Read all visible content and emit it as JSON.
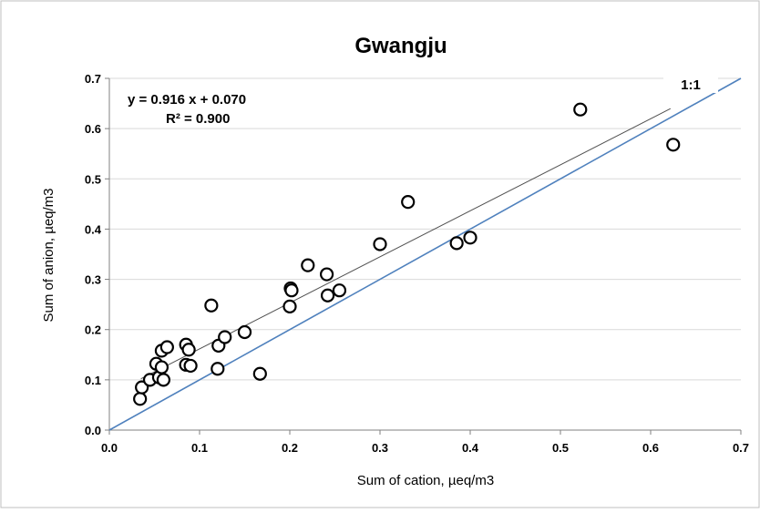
{
  "chart_data": {
    "type": "scatter",
    "title": "Gwangju",
    "xlabel": "Sum of cation, µeq/m3",
    "ylabel": "Sum of anion, µeq/m3",
    "xlim": [
      0,
      0.7
    ],
    "ylim": [
      0,
      0.7
    ],
    "xticks": [
      "0.0",
      "0.1",
      "0.2",
      "0.3",
      "0.4",
      "0.5",
      "0.6",
      "0.7"
    ],
    "yticks": [
      "0.0",
      "0.1",
      "0.2",
      "0.3",
      "0.4",
      "0.5",
      "0.6",
      "0.7"
    ],
    "grid": "horizontal",
    "regression": {
      "equation": "y = 0.916 x + 0.070",
      "r2": "R² = 0.900",
      "slope": 0.916,
      "intercept": 0.07,
      "x_range": [
        0.035,
        0.622
      ]
    },
    "reference_line": {
      "label": "1:1",
      "slope": 1,
      "intercept": 0,
      "x_range": [
        0,
        0.7
      ]
    },
    "colors": {
      "points": "#000000",
      "regression": "#505050",
      "reference": "#4f81bd",
      "grid": "#d9d9d9"
    },
    "points": [
      {
        "x": 0.034,
        "y": 0.062
      },
      {
        "x": 0.036,
        "y": 0.085
      },
      {
        "x": 0.045,
        "y": 0.1
      },
      {
        "x": 0.052,
        "y": 0.132
      },
      {
        "x": 0.055,
        "y": 0.105
      },
      {
        "x": 0.058,
        "y": 0.125
      },
      {
        "x": 0.058,
        "y": 0.158
      },
      {
        "x": 0.06,
        "y": 0.1
      },
      {
        "x": 0.064,
        "y": 0.165
      },
      {
        "x": 0.085,
        "y": 0.17
      },
      {
        "x": 0.085,
        "y": 0.13
      },
      {
        "x": 0.088,
        "y": 0.16
      },
      {
        "x": 0.09,
        "y": 0.128
      },
      {
        "x": 0.113,
        "y": 0.248
      },
      {
        "x": 0.12,
        "y": 0.122
      },
      {
        "x": 0.121,
        "y": 0.168
      },
      {
        "x": 0.128,
        "y": 0.185
      },
      {
        "x": 0.15,
        "y": 0.195
      },
      {
        "x": 0.167,
        "y": 0.112
      },
      {
        "x": 0.2,
        "y": 0.246
      },
      {
        "x": 0.201,
        "y": 0.282
      },
      {
        "x": 0.202,
        "y": 0.278
      },
      {
        "x": 0.22,
        "y": 0.328
      },
      {
        "x": 0.241,
        "y": 0.31
      },
      {
        "x": 0.242,
        "y": 0.268
      },
      {
        "x": 0.255,
        "y": 0.278
      },
      {
        "x": 0.3,
        "y": 0.37
      },
      {
        "x": 0.331,
        "y": 0.454
      },
      {
        "x": 0.385,
        "y": 0.372
      },
      {
        "x": 0.4,
        "y": 0.383
      },
      {
        "x": 0.522,
        "y": 0.638
      },
      {
        "x": 0.625,
        "y": 0.568
      }
    ]
  }
}
